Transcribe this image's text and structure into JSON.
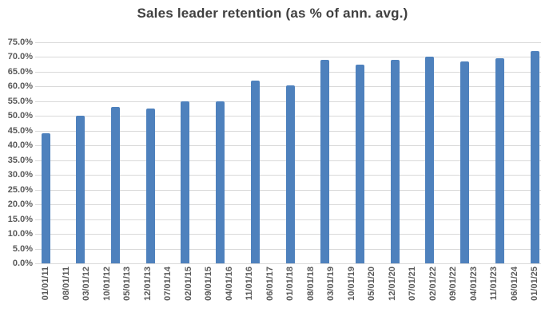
{
  "chart_data": {
    "type": "bar",
    "title": "Sales leader retention (as % of ann. avg.)",
    "xlabel": "",
    "ylabel": "",
    "legend": "none",
    "grid": true,
    "ylim": [
      0,
      75
    ],
    "ytick_step": 5,
    "y_tick_labels": [
      "0.0%",
      "5.0%",
      "10.0%",
      "15.0%",
      "20.0%",
      "25.0%",
      "30.0%",
      "35.0%",
      "40.0%",
      "45.0%",
      "50.0%",
      "55.0%",
      "60.0%",
      "65.0%",
      "70.0%",
      "75.0%"
    ],
    "x_tick_labels": [
      "01/01/11",
      "08/01/11",
      "03/01/12",
      "10/01/12",
      "05/01/13",
      "12/01/13",
      "07/01/14",
      "02/01/15",
      "09/01/15",
      "04/01/16",
      "11/01/16",
      "06/01/17",
      "01/01/18",
      "08/01/18",
      "03/01/19",
      "10/01/19",
      "05/01/20",
      "12/01/20",
      "07/01/21",
      "02/01/22",
      "09/01/22",
      "04/01/23",
      "11/01/23",
      "06/01/24",
      "01/01/25"
    ],
    "x_tick_interval_months": 7,
    "bar_interval_months": 12,
    "bars": [
      {
        "date": "01/01/11",
        "value": 44.0
      },
      {
        "date": "01/01/12",
        "value": 50.0
      },
      {
        "date": "01/01/13",
        "value": 53.0
      },
      {
        "date": "01/01/14",
        "value": 52.5
      },
      {
        "date": "01/01/15",
        "value": 55.0
      },
      {
        "date": "01/01/16",
        "value": 55.0
      },
      {
        "date": "01/01/17",
        "value": 62.0
      },
      {
        "date": "01/01/18",
        "value": 60.5
      },
      {
        "date": "01/01/19",
        "value": 69.0
      },
      {
        "date": "01/01/20",
        "value": 67.5
      },
      {
        "date": "01/01/21",
        "value": 69.0
      },
      {
        "date": "01/01/22",
        "value": 70.0
      },
      {
        "date": "01/01/23",
        "value": 68.5
      },
      {
        "date": "01/01/24",
        "value": 69.5
      },
      {
        "date": "01/01/25",
        "value": 72.0
      }
    ],
    "colors": {
      "bar": "#4E81BD",
      "title": "#404040",
      "axis_label": "#595959",
      "gridline": "#D9D9D9",
      "background": "#FFFFFF"
    }
  }
}
